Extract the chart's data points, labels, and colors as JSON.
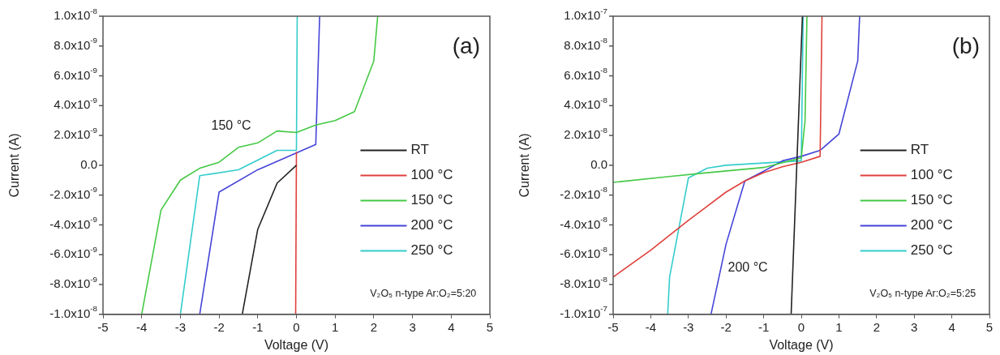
{
  "chart_data": [
    {
      "type": "line",
      "xlabel": "Voltage (V)",
      "ylabel": "Current (A)",
      "xlim": [
        -5,
        5
      ],
      "xticks": [
        -5,
        -4,
        -3,
        -2,
        -1,
        0,
        1,
        2,
        3,
        4,
        5
      ],
      "ylim": [
        -1e-08,
        1e-08
      ],
      "yticks": [
        {
          "value": -1e-08,
          "label": "-1.0x10$^{-8}$"
        },
        {
          "value": -8e-09,
          "label": "-8.0x10$^{-9}$"
        },
        {
          "value": -6e-09,
          "label": "-6.0x10$^{-9}$"
        },
        {
          "value": -4e-09,
          "label": "-4.0x10$^{-9}$"
        },
        {
          "value": -2e-09,
          "label": "-2.0x10$^{-9}$"
        },
        {
          "value": 0,
          "label": "0.0"
        },
        {
          "value": 2e-09,
          "label": "2.0x10$^{-9}$"
        },
        {
          "value": 4e-09,
          "label": "4.0x10$^{-9}$"
        },
        {
          "value": 6e-09,
          "label": "6.0x10$^{-9}$"
        },
        {
          "value": 8e-09,
          "label": "8.0x10$^{-9}$"
        },
        {
          "value": 1e-08,
          "label": "1.0x10$^{-8}$"
        }
      ],
      "grid": false,
      "legend": "right",
      "annotations": [
        "(a)",
        "V₂O₅ n-type Ar:O₂=5:20",
        "150 °C"
      ],
      "series": [
        {
          "name": "RT",
          "color": "#222222",
          "x": [
            -1.4,
            -1,
            -0.5,
            0
          ],
          "values": [
            -1e-08,
            -4.3e-09,
            -1.2e-09,
            0
          ]
        },
        {
          "name": "100 °C",
          "color": "#e0403c",
          "x": [
            -0.02,
            0
          ],
          "values": [
            -1e-08,
            9e-10
          ]
        },
        {
          "name": "150 °C",
          "color": "#44c944",
          "x": [
            -4,
            -3.95,
            -3.5,
            -3,
            -2.5,
            -2,
            -1.5,
            -1,
            -0.5,
            0,
            0.5,
            1,
            1.5,
            2,
            2.1
          ],
          "values": [
            -1e-08,
            -9.3e-09,
            -3e-09,
            -1e-09,
            -2e-10,
            2e-10,
            1.2e-09,
            1.5e-09,
            2.3e-09,
            2.2e-09,
            2.7e-09,
            3e-09,
            3.6e-09,
            7e-09,
            1e-08
          ]
        },
        {
          "name": "200 °C",
          "color": "#4444d8",
          "x": [
            -2.5,
            -2,
            -1,
            0.5,
            0.6
          ],
          "values": [
            -1e-08,
            -1.8e-09,
            -3e-10,
            1.4e-09,
            1e-08
          ]
        },
        {
          "name": "250 °C",
          "color": "#33cccc",
          "x": [
            -3,
            -2.5,
            -1.5,
            -0.5,
            0,
            0.02
          ],
          "values": [
            -1e-08,
            -7e-10,
            -3e-10,
            1e-09,
            1e-09,
            1e-08
          ]
        }
      ]
    },
    {
      "type": "line",
      "xlabel": "Voltage (V)",
      "ylabel": "Current (A)",
      "xlim": [
        -5,
        5
      ],
      "xticks": [
        -5,
        -4,
        -3,
        -2,
        -1,
        0,
        1,
        2,
        3,
        4,
        5
      ],
      "ylim": [
        -1e-07,
        1e-07
      ],
      "yticks": [
        {
          "value": -1e-07,
          "label": "-1.0x10$^{-7}$"
        },
        {
          "value": -8e-08,
          "label": "-8.0x10$^{-8}$"
        },
        {
          "value": -6e-08,
          "label": "-6.0x10$^{-8}$"
        },
        {
          "value": -4e-08,
          "label": "-4.0x10$^{-8}$"
        },
        {
          "value": -2e-08,
          "label": "-2.0x10$^{-8}$"
        },
        {
          "value": 0,
          "label": "0.0"
        },
        {
          "value": 2e-08,
          "label": "2.0x10$^{-8}$"
        },
        {
          "value": 4e-08,
          "label": "4.0x10$^{-8}$"
        },
        {
          "value": 6e-08,
          "label": "6.0x10$^{-8}$"
        },
        {
          "value": 8e-08,
          "label": "8.0x10$^{-8}$"
        },
        {
          "value": 1e-07,
          "label": "1.0x10$^{-7}$"
        }
      ],
      "grid": false,
      "legend": "right",
      "annotations": [
        "(b)",
        "V₂O₅ n-type Ar:O₂=5:25",
        "200 °C"
      ],
      "series": [
        {
          "name": "RT",
          "color": "#222222",
          "x": [
            -0.27,
            0.03
          ],
          "values": [
            -1e-07,
            1e-07
          ]
        },
        {
          "name": "100 °C",
          "color": "#e0403c",
          "x": [
            -5,
            -4,
            -3,
            -2,
            -1.5,
            -1,
            -0.5,
            0,
            0.5,
            0.55
          ],
          "values": [
            -7.5e-08,
            -5.7e-08,
            -3.7e-08,
            -1.8e-08,
            -1.05e-08,
            -5e-09,
            -1e-09,
            2e-09,
            6e-09,
            1e-07
          ]
        },
        {
          "name": "150 °C",
          "color": "#44c944",
          "x": [
            -5,
            -3.5,
            -2.5,
            -1,
            0,
            0.1,
            0.15
          ],
          "values": [
            -1.15e-08,
            -7.5e-09,
            -5e-09,
            -1.5e-09,
            5e-09,
            3e-08,
            1e-07
          ]
        },
        {
          "name": "200 °C",
          "color": "#4444d8",
          "x": [
            -2.4,
            -2,
            -1.5,
            -1,
            -0.5,
            0,
            0.5,
            1,
            1.5,
            1.55
          ],
          "values": [
            -1e-07,
            -5.3e-08,
            -1.05e-08,
            -4e-09,
            3e-09,
            6e-09,
            1e-08,
            2.1e-08,
            7e-08,
            1e-07
          ]
        },
        {
          "name": "250 °C",
          "color": "#33cccc",
          "x": [
            -3.55,
            -3.5,
            -3,
            -2.5,
            -2,
            0,
            0.05
          ],
          "values": [
            -1e-07,
            -7.5e-08,
            -8.5e-09,
            -2e-09,
            0,
            3e-09,
            1e-07
          ]
        }
      ]
    }
  ]
}
